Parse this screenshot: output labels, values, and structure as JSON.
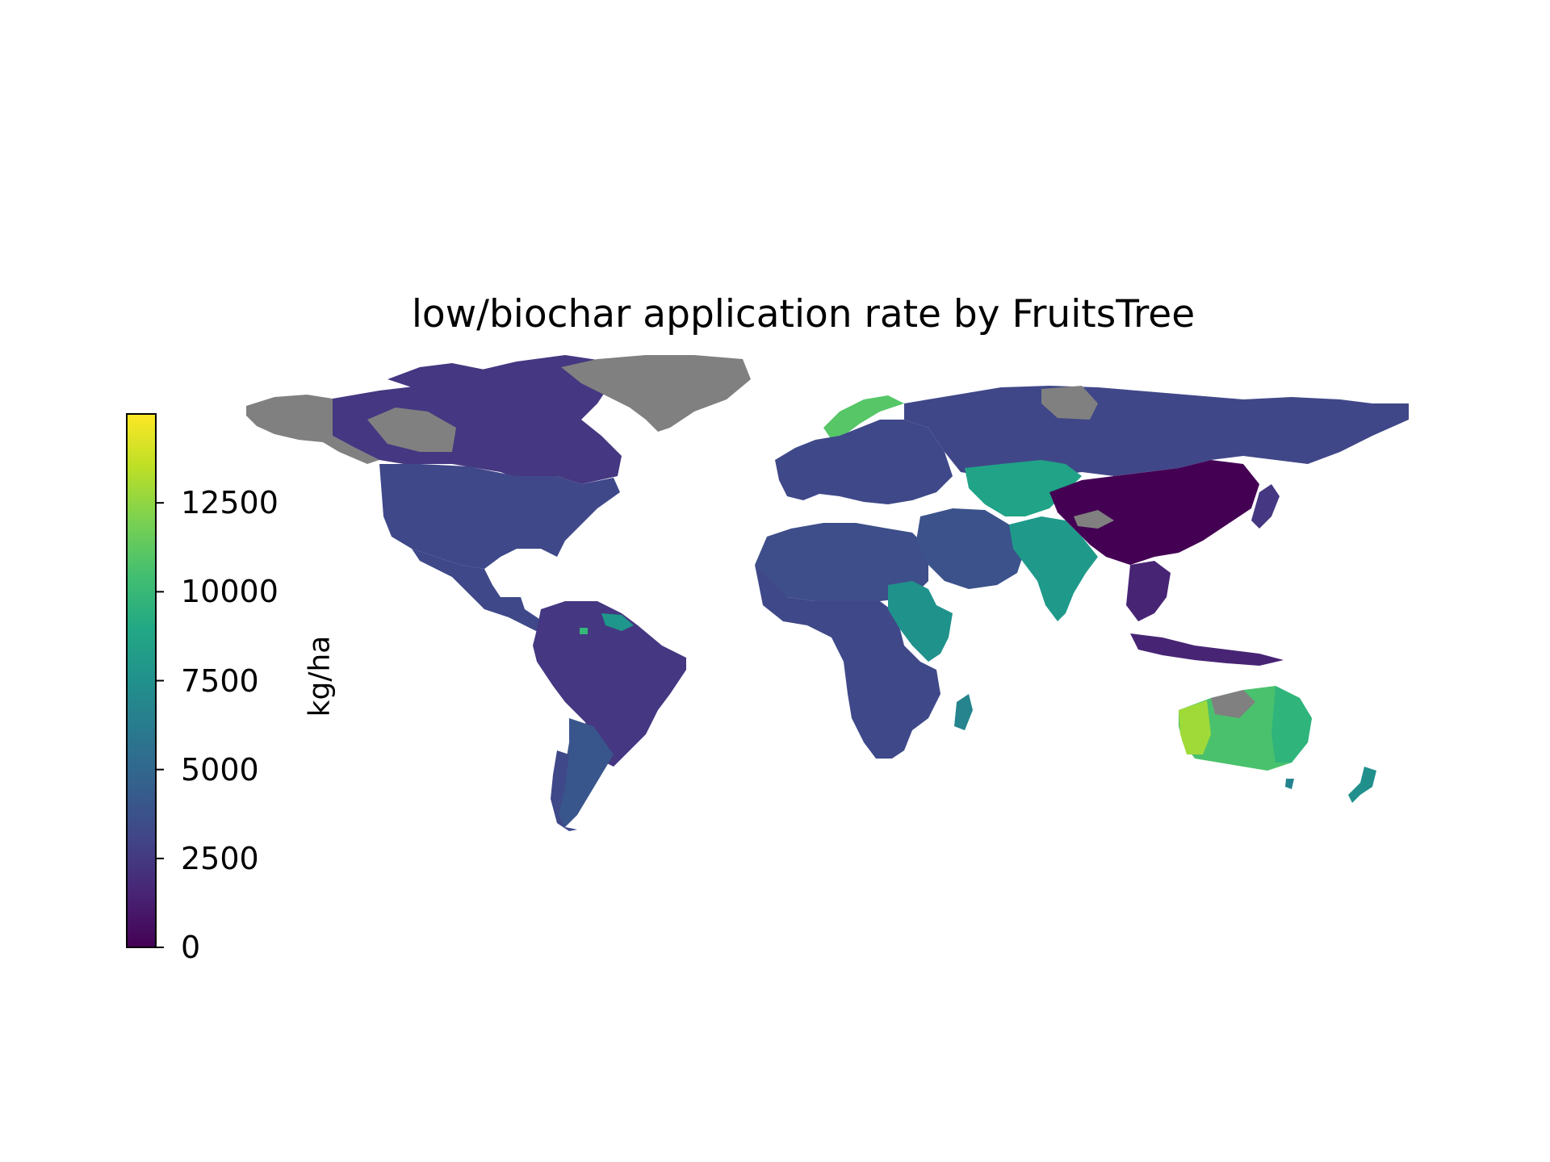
{
  "title": "low/biochar application rate by FruitsTree",
  "colorbar": {
    "label": "kg/ha",
    "min": 0,
    "max": 15000,
    "ticks": [
      "0",
      "2500",
      "5000",
      "7500",
      "10000",
      "12500"
    ],
    "colormap": "viridis",
    "no_data_color": "#808080"
  },
  "map": {
    "projection": "equirectangular",
    "regions": [
      {
        "name": "Canada",
        "color": "#453781"
      },
      {
        "name": "United States",
        "color": "#3f4889"
      },
      {
        "name": "Mexico & Central America",
        "color": "#3f4889"
      },
      {
        "name": "South America North",
        "color": "#453781"
      },
      {
        "name": "Argentina",
        "color": "#39568c"
      },
      {
        "name": "Venezuela coast",
        "color": "#1f968b"
      },
      {
        "name": "Greenland",
        "color": "no data"
      },
      {
        "name": "Alaska",
        "color": "no data"
      },
      {
        "name": "Scandinavia",
        "color": "#56c667"
      },
      {
        "name": "Europe",
        "color": "#3f4889"
      },
      {
        "name": "Russia",
        "color": "#404788"
      },
      {
        "name": "North Africa",
        "color": "#3d4e8a"
      },
      {
        "name": "Sub-Saharan Africa",
        "color": "#3f4889"
      },
      {
        "name": "East Africa",
        "color": "#20928c"
      },
      {
        "name": "Madagascar",
        "color": "#25848e"
      },
      {
        "name": "Middle East",
        "color": "#3b528b"
      },
      {
        "name": "Central Asia",
        "color": "#20a386"
      },
      {
        "name": "India",
        "color": "#1f9a8a"
      },
      {
        "name": "China",
        "color": "#440154"
      },
      {
        "name": "Southeast Asia",
        "color": "#482475"
      },
      {
        "name": "Japan",
        "color": "#453781"
      },
      {
        "name": "Australia West",
        "color": "#a0da39"
      },
      {
        "name": "Australia",
        "color": "#4ac16d"
      },
      {
        "name": "Australia East",
        "color": "#2fb47c"
      },
      {
        "name": "New Zealand",
        "color": "#21908d"
      }
    ]
  }
}
